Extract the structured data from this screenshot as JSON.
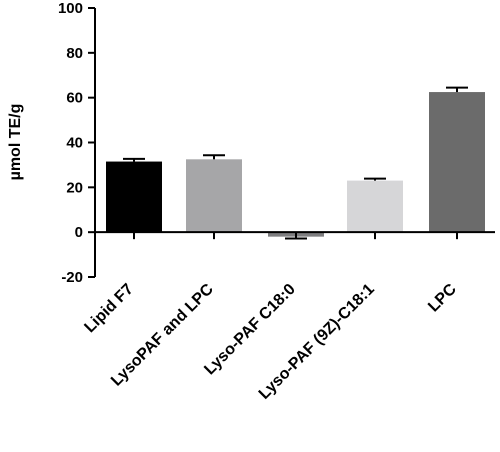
{
  "chart_data": {
    "type": "bar",
    "title": "",
    "xlabel": "",
    "ylabel": "µmol TE/g",
    "ylim": [
      -20,
      100
    ],
    "yticks": [
      -20,
      0,
      20,
      40,
      60,
      80,
      100
    ],
    "ytick_labels": [
      "-20",
      "0",
      "20",
      "40",
      "60",
      "80",
      "100"
    ],
    "categories": [
      "Lipid F7",
      "LysoPAF and LPC",
      "Lyso-PAF C18:0",
      "Lyso-PAF (9Z)-C18:1",
      "LPC"
    ],
    "values": [
      31.5,
      32.5,
      -2,
      23,
      62.5
    ],
    "errors": [
      1.2,
      1.8,
      0.8,
      0.9,
      2
    ],
    "bar_colors": [
      "#000000",
      "#a6a6a8",
      "#7e7e80",
      "#d6d6d8",
      "#6b6b6b"
    ],
    "grid": false,
    "legend": "none"
  }
}
